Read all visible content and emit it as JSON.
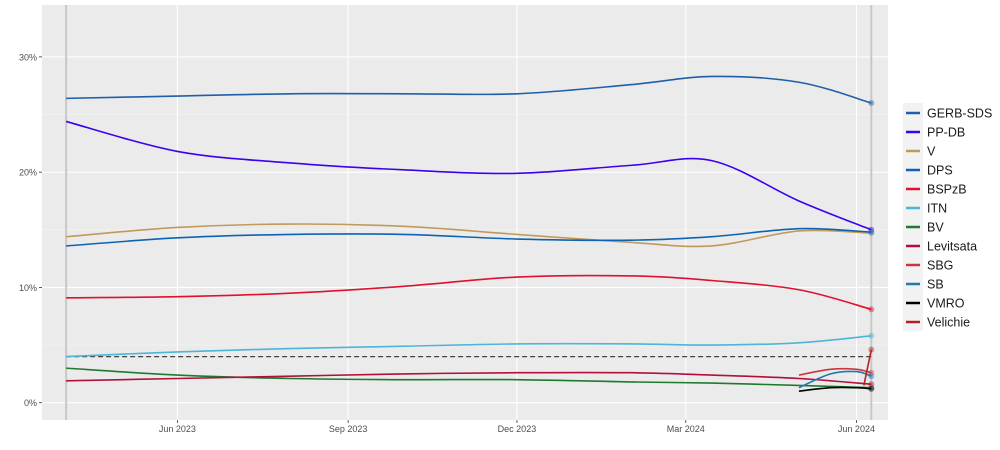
{
  "chart_data": {
    "type": "line",
    "title": "",
    "xlabel": "",
    "ylabel": "",
    "xlim": [
      "2023-03-20",
      "2024-06-18"
    ],
    "ylim": [
      -1.5,
      34.5
    ],
    "grid": true,
    "legend_position": "right",
    "x_ticks": [
      {
        "date": "2023-06-01",
        "label": "Jun 2023"
      },
      {
        "date": "2023-09-01",
        "label": "Sep 2023"
      },
      {
        "date": "2023-12-01",
        "label": "Dec 2023"
      },
      {
        "date": "2024-03-01",
        "label": "Mar 2024"
      },
      {
        "date": "2024-06-01",
        "label": "Jun 2024"
      }
    ],
    "y_ticks": [
      {
        "value": 0,
        "label": "0%"
      },
      {
        "value": 10,
        "label": "10%"
      },
      {
        "value": 20,
        "label": "20%"
      },
      {
        "value": 30,
        "label": "30%"
      }
    ],
    "election_dates": [
      "2023-04-02",
      "2024-06-09"
    ],
    "threshold": {
      "value": 4,
      "from": "2023-04-02",
      "to": "2024-06-09"
    },
    "series": [
      {
        "name": "GERB-SDS",
        "color": "#1f5fa8",
        "x": [
          "2023-04-02",
          "2023-06-01",
          "2023-08-01",
          "2023-10-01",
          "2023-12-01",
          "2024-02-01",
          "2024-03-15",
          "2024-05-01",
          "2024-06-09"
        ],
        "values": [
          26.4,
          26.6,
          26.8,
          26.8,
          26.8,
          27.6,
          28.3,
          27.8,
          26.0
        ]
      },
      {
        "name": "PP-DB",
        "color": "#3b00f0",
        "x": [
          "2023-04-02",
          "2023-06-01",
          "2023-08-01",
          "2023-10-01",
          "2023-12-01",
          "2024-02-01",
          "2024-03-15",
          "2024-05-01",
          "2024-06-09"
        ],
        "values": [
          24.4,
          21.8,
          20.8,
          20.2,
          19.9,
          20.6,
          21.0,
          17.5,
          15.0
        ]
      },
      {
        "name": "V",
        "color": "#c09a5b",
        "x": [
          "2023-04-02",
          "2023-06-01",
          "2023-08-01",
          "2023-10-01",
          "2023-12-01",
          "2024-02-01",
          "2024-03-15",
          "2024-05-01",
          "2024-06-09"
        ],
        "values": [
          14.4,
          15.2,
          15.5,
          15.3,
          14.6,
          13.9,
          13.6,
          14.9,
          14.7
        ]
      },
      {
        "name": "DPS",
        "color": "#0d63b3",
        "x": [
          "2023-04-02",
          "2023-06-01",
          "2023-08-01",
          "2023-10-01",
          "2023-12-01",
          "2024-02-01",
          "2024-03-15",
          "2024-05-01",
          "2024-06-09"
        ],
        "values": [
          13.6,
          14.3,
          14.6,
          14.6,
          14.2,
          14.1,
          14.4,
          15.1,
          14.8
        ]
      },
      {
        "name": "BSPzB",
        "color": "#e0102f",
        "x": [
          "2023-04-02",
          "2023-06-01",
          "2023-08-01",
          "2023-10-01",
          "2023-12-01",
          "2024-02-01",
          "2024-03-15",
          "2024-05-01",
          "2024-06-09"
        ],
        "values": [
          9.1,
          9.2,
          9.5,
          10.1,
          10.9,
          11.0,
          10.6,
          9.8,
          8.1
        ]
      },
      {
        "name": "ITN",
        "color": "#4cb5d9",
        "x": [
          "2023-04-02",
          "2023-06-01",
          "2023-08-01",
          "2023-10-01",
          "2023-12-01",
          "2024-02-01",
          "2024-03-15",
          "2024-05-01",
          "2024-06-09"
        ],
        "values": [
          4.0,
          4.4,
          4.7,
          4.9,
          5.1,
          5.1,
          5.0,
          5.2,
          5.8
        ]
      },
      {
        "name": "BV",
        "color": "#1e7a2e",
        "x": [
          "2023-04-02",
          "2023-06-01",
          "2023-08-01",
          "2023-10-01",
          "2023-12-01",
          "2024-02-01",
          "2024-03-15",
          "2024-05-01",
          "2024-06-09"
        ],
        "values": [
          3.0,
          2.4,
          2.1,
          2.0,
          2.0,
          1.8,
          1.7,
          1.5,
          1.3
        ]
      },
      {
        "name": "Levitsata",
        "color": "#b0103a",
        "x": [
          "2023-04-02",
          "2023-06-01",
          "2023-08-01",
          "2023-10-01",
          "2023-12-01",
          "2024-02-01",
          "2024-03-15",
          "2024-05-01",
          "2024-06-09"
        ],
        "values": [
          1.9,
          2.1,
          2.3,
          2.5,
          2.6,
          2.6,
          2.4,
          2.1,
          1.6
        ]
      },
      {
        "name": "SBG",
        "color": "#c8383a",
        "x": [
          "2024-05-01",
          "2024-05-18",
          "2024-06-01",
          "2024-06-09"
        ],
        "values": [
          2.4,
          2.9,
          2.9,
          2.6
        ]
      },
      {
        "name": "SB",
        "color": "#1f77b4",
        "x": [
          "2024-05-01",
          "2024-05-18",
          "2024-06-01",
          "2024-06-09"
        ],
        "values": [
          1.3,
          2.5,
          2.7,
          2.3
        ]
      },
      {
        "name": "VMRO",
        "color": "#000000",
        "x": [
          "2024-05-01",
          "2024-05-18",
          "2024-06-01",
          "2024-06-09"
        ],
        "values": [
          1.0,
          1.3,
          1.3,
          1.2
        ]
      },
      {
        "name": "Velichie",
        "color": "#b22222",
        "x": [
          "2024-06-05",
          "2024-06-09"
        ],
        "values": [
          1.5,
          4.6
        ]
      }
    ]
  }
}
